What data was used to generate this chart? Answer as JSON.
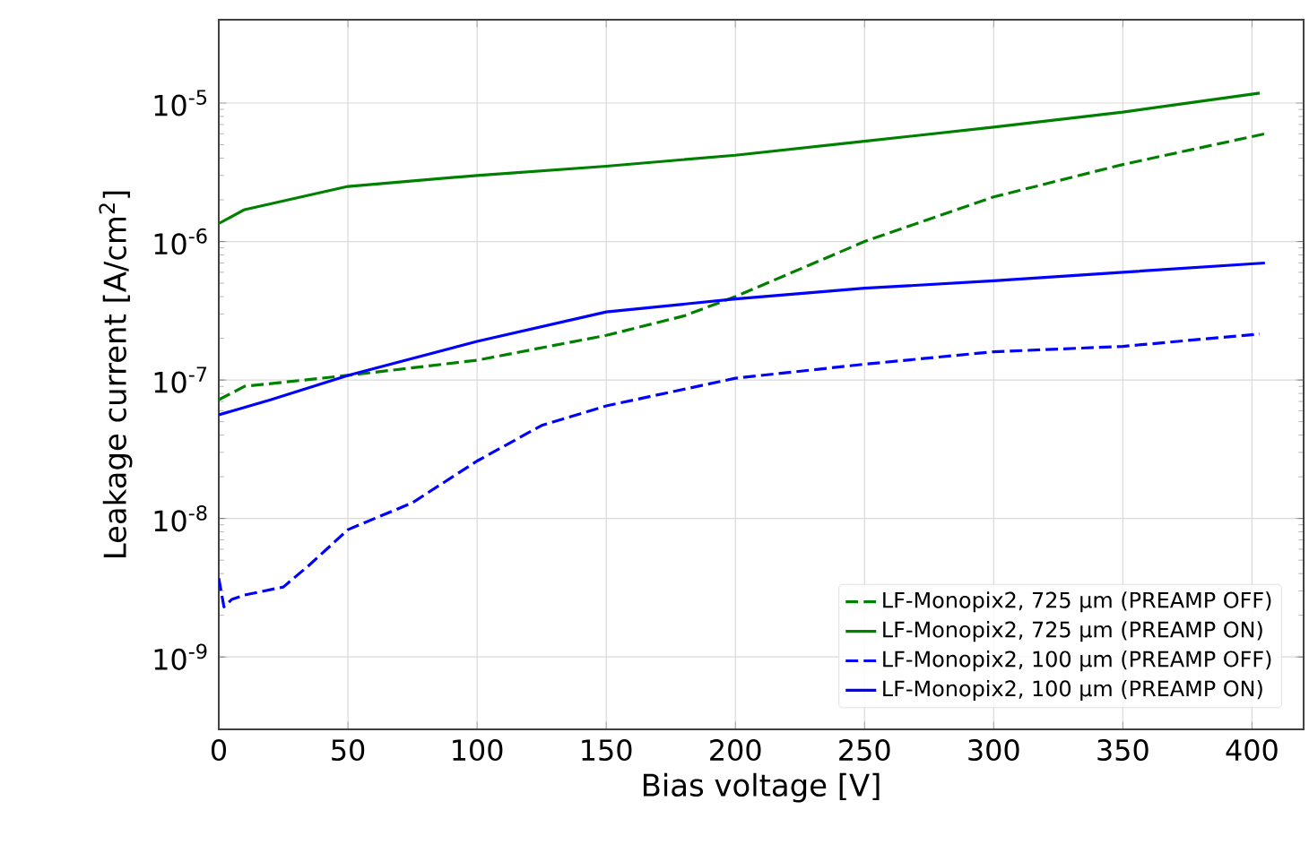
{
  "chart_data": {
    "type": "line",
    "xlabel": "Bias voltage [V]",
    "ylabel": "Leakage current [A/cm$^{2}$]",
    "log": "y",
    "grid": true,
    "legend": "bottom right",
    "xlim": [
      0,
      420
    ],
    "ylim": [
      3e-10,
      4e-05
    ],
    "xticks": [
      0,
      50,
      100,
      150,
      200,
      250,
      300,
      350,
      400
    ],
    "yticks": [
      {
        "value": 1e-09,
        "label": "10$^{-9}$"
      },
      {
        "value": 1e-08,
        "label": "10$^{-8}$"
      },
      {
        "value": 1e-07,
        "label": "10$^{-7}$"
      },
      {
        "value": 1e-06,
        "label": "10$^{-6}$"
      },
      {
        "value": 1e-05,
        "label": "10$^{-5}$"
      }
    ],
    "series": [
      {
        "name": "LF-Monopix2, 725 µm (PREAMP OFF)",
        "color": "#008000",
        "line_style": "dashed",
        "x": [
          0,
          10,
          50,
          100,
          150,
          180,
          200,
          250,
          300,
          350,
          405
        ],
        "values": [
          7.2e-08,
          9e-08,
          1.08e-07,
          1.39e-07,
          2.1e-07,
          2.9e-07,
          4e-07,
          1e-06,
          2.1e-06,
          3.6e-06,
          6e-06
        ]
      },
      {
        "name": "LF-Monopix2, 725 µm (PREAMP ON)",
        "color": "#008000",
        "line_style": "solid",
        "x": [
          0,
          10,
          50,
          100,
          150,
          200,
          250,
          300,
          350,
          403
        ],
        "values": [
          1.35e-06,
          1.7e-06,
          2.5e-06,
          3e-06,
          3.5e-06,
          4.2e-06,
          5.3e-06,
          6.7e-06,
          8.6e-06,
          1.18e-05
        ]
      },
      {
        "name": "LF-Monopix2, 100 µm (PREAMP OFF)",
        "color": "#0000ff",
        "line_style": "dashed",
        "x": [
          0,
          2,
          5,
          10,
          25,
          35,
          50,
          75,
          100,
          125,
          150,
          200,
          250,
          300,
          350,
          403
        ],
        "values": [
          3.7e-09,
          2.3e-09,
          2.6e-09,
          2.8e-09,
          3.2e-09,
          4.6e-09,
          8.3e-09,
          1.3e-08,
          2.6e-08,
          4.7e-08,
          6.5e-08,
          1.03e-07,
          1.3e-07,
          1.6e-07,
          1.75e-07,
          2.15e-07
        ]
      },
      {
        "name": "LF-Monopix2, 100 µm (PREAMP ON)",
        "color": "#0000ff",
        "line_style": "solid",
        "x": [
          0,
          20,
          50,
          100,
          150,
          200,
          250,
          300,
          350,
          405
        ],
        "values": [
          5.6e-08,
          7.2e-08,
          1.08e-07,
          1.9e-07,
          3.1e-07,
          3.85e-07,
          4.6e-07,
          5.2e-07,
          6e-07,
          7e-07
        ]
      }
    ]
  }
}
